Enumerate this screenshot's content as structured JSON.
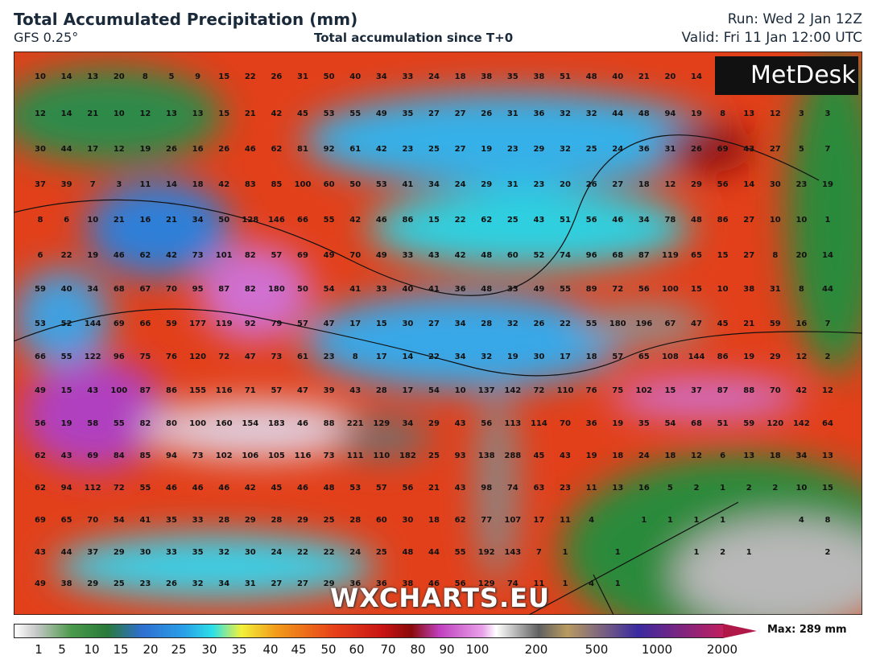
{
  "header": {
    "title": "Total Accumulated Precipitation (mm)",
    "model": "GFS 0.25°",
    "subtitle": "Total accumulation since T+0",
    "run": "Run: Wed 2 Jan 12Z",
    "valid": "Valid: Fri 11 Jan 12:00 UTC"
  },
  "grid": {
    "rows": [
      [
        10,
        14,
        13,
        20,
        8,
        5,
        9,
        15,
        22,
        26,
        31,
        50,
        40,
        34,
        33,
        24,
        18,
        38,
        35,
        38,
        51,
        48,
        40,
        21,
        20,
        14,
        null,
        null,
        null,
        null,
        null
      ],
      [
        12,
        14,
        21,
        10,
        12,
        13,
        13,
        15,
        21,
        42,
        45,
        53,
        55,
        49,
        35,
        27,
        27,
        26,
        31,
        36,
        32,
        32,
        44,
        48,
        94,
        19,
        8,
        13,
        12,
        3,
        3
      ],
      [
        30,
        44,
        17,
        12,
        19,
        26,
        16,
        26,
        46,
        62,
        81,
        92,
        61,
        42,
        23,
        25,
        27,
        19,
        23,
        29,
        32,
        25,
        24,
        36,
        31,
        26,
        69,
        43,
        27,
        5,
        7
      ],
      [
        37,
        39,
        7,
        3,
        11,
        14,
        18,
        42,
        83,
        85,
        100,
        60,
        50,
        53,
        41,
        34,
        24,
        29,
        31,
        23,
        20,
        26,
        27,
        18,
        12,
        29,
        56,
        14,
        30,
        23,
        19
      ],
      [
        8,
        6,
        10,
        21,
        16,
        21,
        34,
        50,
        128,
        146,
        66,
        55,
        42,
        46,
        86,
        15,
        22,
        62,
        25,
        43,
        51,
        56,
        46,
        34,
        78,
        48,
        86,
        27,
        10,
        10,
        1
      ],
      [
        6,
        22,
        19,
        46,
        62,
        42,
        73,
        101,
        82,
        57,
        69,
        49,
        70,
        49,
        33,
        43,
        42,
        48,
        60,
        52,
        74,
        96,
        68,
        87,
        119,
        65,
        15,
        27,
        8,
        20,
        14
      ],
      [
        59,
        40,
        34,
        68,
        67,
        70,
        95,
        87,
        82,
        180,
        50,
        54,
        41,
        33,
        40,
        41,
        36,
        48,
        33,
        49,
        55,
        89,
        72,
        56,
        100,
        15,
        10,
        38,
        31,
        8,
        44
      ],
      [
        53,
        52,
        144,
        69,
        66,
        59,
        177,
        119,
        92,
        79,
        57,
        47,
        17,
        15,
        30,
        27,
        34,
        28,
        32,
        26,
        22,
        55,
        180,
        196,
        67,
        47,
        45,
        21,
        59,
        16,
        7
      ],
      [
        66,
        55,
        122,
        96,
        75,
        76,
        120,
        72,
        47,
        73,
        61,
        23,
        8,
        17,
        14,
        22,
        34,
        32,
        19,
        30,
        17,
        18,
        57,
        65,
        108,
        144,
        86,
        19,
        29,
        12,
        2
      ],
      [
        49,
        15,
        43,
        100,
        87,
        86,
        155,
        116,
        71,
        57,
        47,
        39,
        43,
        28,
        17,
        54,
        10,
        137,
        142,
        72,
        110,
        76,
        75,
        102,
        15,
        37,
        87,
        88,
        70,
        42,
        12
      ],
      [
        56,
        19,
        58,
        55,
        82,
        80,
        100,
        160,
        154,
        183,
        46,
        88,
        221,
        129,
        34,
        29,
        43,
        56,
        113,
        114,
        70,
        36,
        19,
        35,
        54,
        68,
        51,
        59,
        120,
        142,
        64
      ],
      [
        62,
        43,
        69,
        84,
        85,
        94,
        73,
        102,
        106,
        105,
        116,
        73,
        111,
        110,
        182,
        25,
        93,
        138,
        288,
        45,
        43,
        19,
        18,
        24,
        18,
        12,
        6,
        13,
        18,
        34,
        13
      ],
      [
        62,
        94,
        112,
        72,
        55,
        46,
        46,
        46,
        42,
        45,
        46,
        48,
        53,
        57,
        56,
        21,
        43,
        98,
        74,
        63,
        23,
        11,
        13,
        16,
        5,
        2,
        1,
        2,
        2,
        10,
        15
      ],
      [
        69,
        65,
        70,
        54,
        41,
        35,
        33,
        28,
        29,
        28,
        29,
        25,
        28,
        60,
        30,
        18,
        62,
        77,
        107,
        17,
        11,
        4,
        null,
        1,
        1,
        1,
        1,
        null,
        null,
        4,
        8
      ],
      [
        43,
        44,
        37,
        29,
        30,
        33,
        35,
        32,
        30,
        24,
        22,
        22,
        24,
        25,
        48,
        44,
        55,
        192,
        143,
        7,
        1,
        null,
        1,
        null,
        null,
        1,
        2,
        1,
        null,
        null,
        2
      ],
      [
        49,
        38,
        29,
        25,
        23,
        26,
        32,
        34,
        31,
        27,
        27,
        29,
        36,
        36,
        38,
        46,
        56,
        129,
        74,
        11,
        1,
        4,
        1,
        null,
        null,
        null,
        null,
        null,
        null,
        null,
        null
      ]
    ]
  },
  "colorbar": {
    "labels": [
      "1",
      "5",
      "10",
      "15",
      "20",
      "25",
      "30",
      "35",
      "40",
      "45",
      "50",
      "60",
      "70",
      "80",
      "90",
      "100",
      "200",
      "500",
      "1000",
      "2000"
    ],
    "max": "Max: 289 mm"
  },
  "branding": {
    "logo": "MetDesk",
    "watermark": "WXCHARTS.EU"
  }
}
